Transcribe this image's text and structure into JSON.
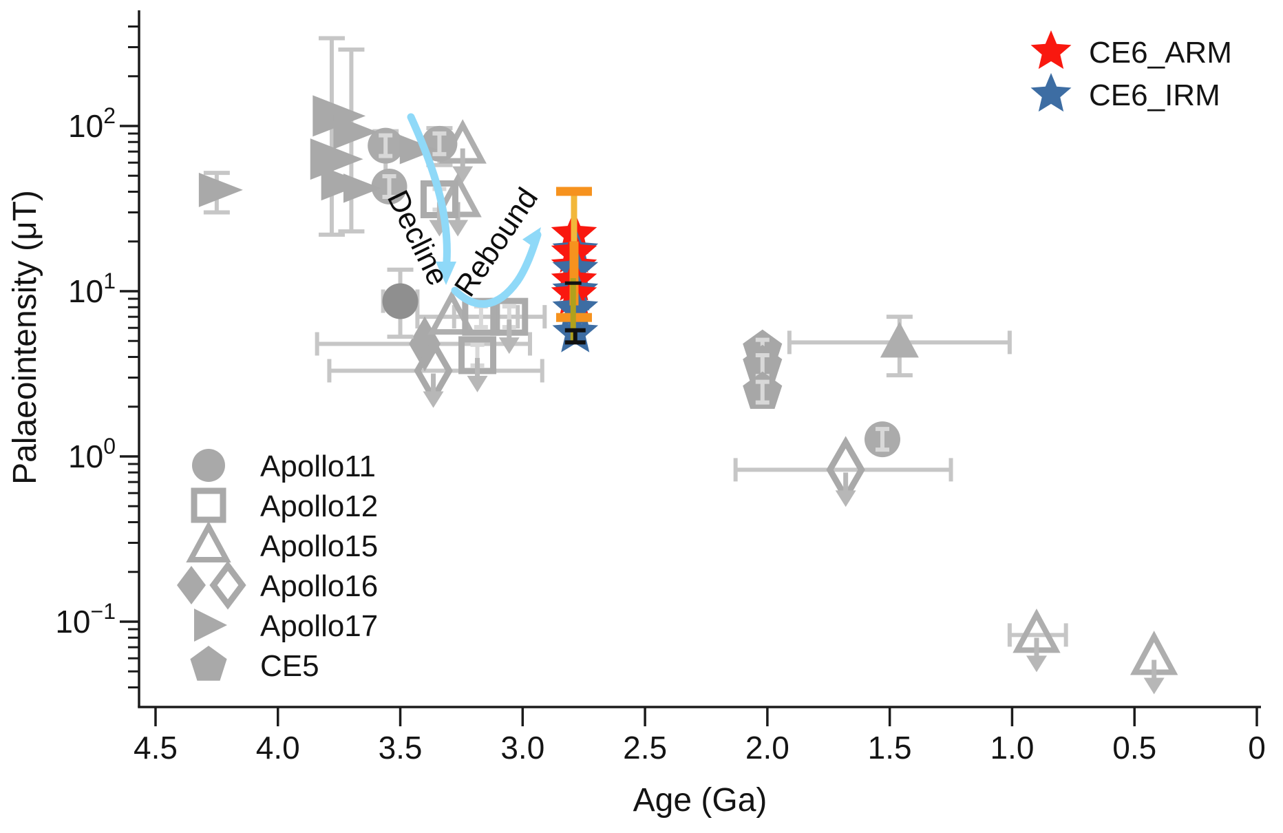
{
  "figure": {
    "axes": {
      "x": {
        "label": "Age (Ga)",
        "ticks": [
          {
            "value": 4.5,
            "label": "4.5"
          },
          {
            "value": 4.0,
            "label": "4.0"
          },
          {
            "value": 3.5,
            "label": "3.5"
          },
          {
            "value": 3.0,
            "label": "3.0"
          },
          {
            "value": 2.5,
            "label": "2.5"
          },
          {
            "value": 2.0,
            "label": "2.0"
          },
          {
            "value": 1.5,
            "label": "1.5"
          },
          {
            "value": 1.0,
            "label": "1.0"
          },
          {
            "value": 0.5,
            "label": "0.5"
          },
          {
            "value": 0.0,
            "label": "0"
          }
        ],
        "reversed": true
      },
      "y": {
        "label": "Palaeointensity (μT)",
        "scale": "log",
        "major_ticks": [
          {
            "value": 100,
            "base": "10",
            "exp": "2"
          },
          {
            "value": 10,
            "base": "10",
            "exp": "1"
          },
          {
            "value": 1,
            "base": "10",
            "exp": "0"
          },
          {
            "value": 0.1,
            "base": "10",
            "exp": "−1"
          }
        ]
      }
    },
    "annotations": {
      "decline": "Decline",
      "rebound": "Rebound"
    },
    "legend_top_right": {
      "items": [
        {
          "label": "CE6_ARM",
          "marker": "star",
          "color": "#f9180f"
        },
        {
          "label": "CE6_IRM",
          "marker": "star",
          "color": "#3d6da3"
        }
      ]
    },
    "legend_bottom_left": {
      "items": [
        {
          "label": "Apollo11",
          "marker": "circle"
        },
        {
          "label": "Apollo12",
          "marker": "square-open"
        },
        {
          "label": "Apollo15",
          "marker": "triangle-open"
        },
        {
          "label": "Apollo16",
          "marker": "diamond-pair"
        },
        {
          "label": "Apollo17",
          "marker": "right-triangle"
        },
        {
          "label": "CE5",
          "marker": "pentagon"
        }
      ]
    },
    "colors": {
      "axis": "#1b1b1b",
      "gray_marker": "#a9a9a9",
      "gray_dark": "#8f8f8f",
      "error_bar": "#c6c6c6",
      "inner_error": "#d8d8d8",
      "down_arrow": "#b7b7b7",
      "ce6_arm_red": "#f9180f",
      "ce6_irm_blue": "#3d6da3",
      "arm_error_orange": "#f6921e",
      "arm_error_yellow": "#f2b73a",
      "irm_error_olive": "#b0a11c",
      "trend_arrow_blue": "#8fd9f8"
    }
  },
  "chart_data": {
    "type": "scatter",
    "title": "",
    "xlabel": "Age (Ga)",
    "ylabel": "Palaeointensity (μT)",
    "x_axis": {
      "min": 0,
      "max": 4.5,
      "reversed": true,
      "unit": "Ga"
    },
    "y_axis": {
      "scale": "log",
      "min": 0.03,
      "max": 450,
      "unit": "μT"
    },
    "series": [
      {
        "name": "Apollo16",
        "marker": "diamond",
        "color": "#a9a9a9",
        "points": [
          {
            "age": 3.4,
            "pi": 4.8,
            "filled": true,
            "xerr": [
              3.84,
              2.97
            ]
          },
          {
            "age": 3.365,
            "pi": 3.3,
            "filled": false,
            "xerr": [
              3.79,
              2.92
            ],
            "upper_limit": true
          },
          {
            "age": 1.68,
            "pi": 0.83,
            "filled": false,
            "xerr": [
              2.13,
              1.25
            ],
            "upper_limit": true
          }
        ]
      },
      {
        "name": "Apollo15",
        "marker": "triangle",
        "color": "#aeaeae",
        "points": [
          {
            "age": 3.245,
            "pi": 76,
            "filled": false,
            "upper_limit": true
          },
          {
            "age": 3.265,
            "pi": 36,
            "filled": false,
            "upper_limit": true
          },
          {
            "age": 3.29,
            "pi": 7.0,
            "filled": false,
            "xerr": [
              3.43,
              3.02
            ]
          },
          {
            "age": 1.46,
            "pi": 4.9,
            "filled": true,
            "xerr": [
              1.91,
              1.01
            ],
            "yerr": [
              3.1,
              7.0
            ]
          },
          {
            "age": 0.9,
            "pi": 0.083,
            "filled": false,
            "xerr": [
              1.01,
              0.78
            ],
            "upper_limit": true
          },
          {
            "age": 0.42,
            "pi": 0.061,
            "filled": false,
            "upper_limit": true
          }
        ]
      },
      {
        "name": "Apollo12",
        "marker": "square",
        "color": "#ababab",
        "points": [
          {
            "age": 3.34,
            "pi": 36,
            "inner_err": true,
            "upper_limit": true
          },
          {
            "age": 3.17,
            "pi": 7.0,
            "inner_err": true,
            "xerr": [
              3.28,
              2.91
            ]
          },
          {
            "age": 3.055,
            "pi": 7.0,
            "inner_err": true,
            "upper_limit": true
          },
          {
            "age": 3.185,
            "pi": 4.1,
            "inner_err": true,
            "upper_limit": true
          }
        ]
      },
      {
        "name": "Apollo11",
        "marker": "circle",
        "color": "#ababab",
        "points": [
          {
            "age": 3.56,
            "pi": 76,
            "inner_err": true,
            "yerr": [
              43,
              93
            ]
          },
          {
            "age": 3.545,
            "pi": 43,
            "inner_err": true
          },
          {
            "age": 3.34,
            "pi": 78,
            "inner_err": true,
            "yerr": [
              58,
              97
            ]
          },
          {
            "age": 3.5,
            "pi": 8.7,
            "shade": "dark",
            "yerr": [
              5.3,
              13.5
            ],
            "xerr": [
              3.57,
              3.43
            ],
            "err_over": true
          },
          {
            "age": 1.53,
            "pi": 1.27,
            "inner_err": true
          }
        ]
      },
      {
        "name": "Apollo17",
        "marker": "right-triangle",
        "color": "#a9a9a9",
        "points": [
          {
            "age": 4.25,
            "pi": 41,
            "yerr": [
              30,
              52
            ]
          },
          {
            "age": 3.77,
            "pi": 115,
            "size": 1.2
          },
          {
            "age": 3.7,
            "pi": 92,
            "yerr": [
              23,
              290
            ]
          },
          {
            "age": 3.78,
            "pi": 63,
            "size": 1.2,
            "yerr": [
              22,
              340
            ]
          },
          {
            "age": 3.75,
            "pi": 45
          },
          {
            "age": 3.67,
            "pi": 42,
            "size": 0.85
          },
          {
            "age": 3.44,
            "pi": 72,
            "size": 0.85
          }
        ]
      },
      {
        "name": "CE5",
        "marker": "pentagon",
        "color": "#a7a7a7",
        "points": [
          {
            "age": 2.02,
            "pi": 4.4,
            "inner_err": true
          },
          {
            "age": 2.02,
            "pi": 3.55,
            "inner_err": true
          },
          {
            "age": 2.02,
            "pi": 2.45,
            "inner_err": true
          }
        ]
      },
      {
        "name": "CE6_ARM",
        "marker": "star",
        "color": "#f9180f",
        "age": 2.79,
        "values": [
          22,
          17,
          14,
          11.5,
          9.5
        ],
        "error_bar_uT": [
          6.9,
          40
        ],
        "error_bar_color": "#f6921e"
      },
      {
        "name": "CE6_IRM",
        "marker": "star",
        "color": "#3d6da3",
        "age": 2.785,
        "values": [
          17.5,
          13.5,
          10,
          7.8,
          5.6
        ],
        "error_bar_uT": [
          4.9,
          12
        ],
        "error_bar_color": "#b0a11c"
      }
    ],
    "trend_annotations": [
      {
        "text": "Decline",
        "from_age_pi": [
          3.45,
          90
        ],
        "to_age_pi": [
          3.31,
          8.5
        ]
      },
      {
        "text": "Rebound",
        "from_age_pi": [
          3.27,
          6.5
        ],
        "to_age_pi": [
          2.93,
          22
        ]
      }
    ],
    "legend_position": {
      "ce6": "top-right",
      "missions": "bottom-left"
    }
  }
}
